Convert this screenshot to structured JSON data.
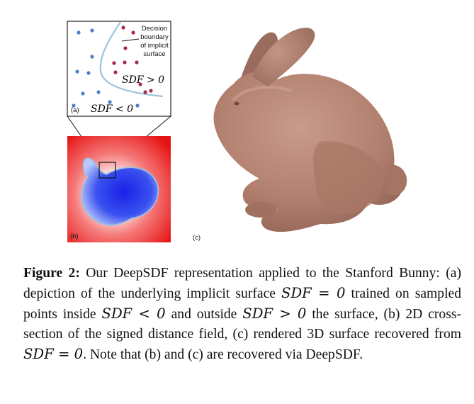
{
  "panel_a": {
    "label": "(a)",
    "boundary_label_line1": "Decision",
    "boundary_label_line2": "boundary",
    "boundary_label_line3": "of implicit",
    "boundary_label_line4": "surface",
    "sdf_pos": "SDF > 0",
    "sdf_neg": "SDF < 0",
    "inside_point_color": "#4a7fc8",
    "outside_point_color": "#a8284c",
    "boundary_color": "#9cc3e0"
  },
  "panel_b": {
    "label": "(b)",
    "inside_color": "#2230e8",
    "outside_color": "#ee1a1a"
  },
  "panel_c": {
    "label": "(c)",
    "surface_color": "#b48474"
  },
  "caption": {
    "figure_label": "Figure 2:",
    "p1": " Our DeepSDF representation applied to the Stanford Bunny: (a) depiction of the underlying implicit surface ",
    "m1": "SDF = 0",
    "p2": " trained on sampled points inside ",
    "m2": "SDF < 0",
    "p3": " and outside ",
    "m3": "SDF > 0",
    "p4": " the surface, (b) 2D cross-section of the signed distance field, (c) rendered 3D surface recovered from ",
    "m4": "SDF = 0",
    "p5": ". Note that (b) and (c) are recovered via DeepSDF."
  }
}
